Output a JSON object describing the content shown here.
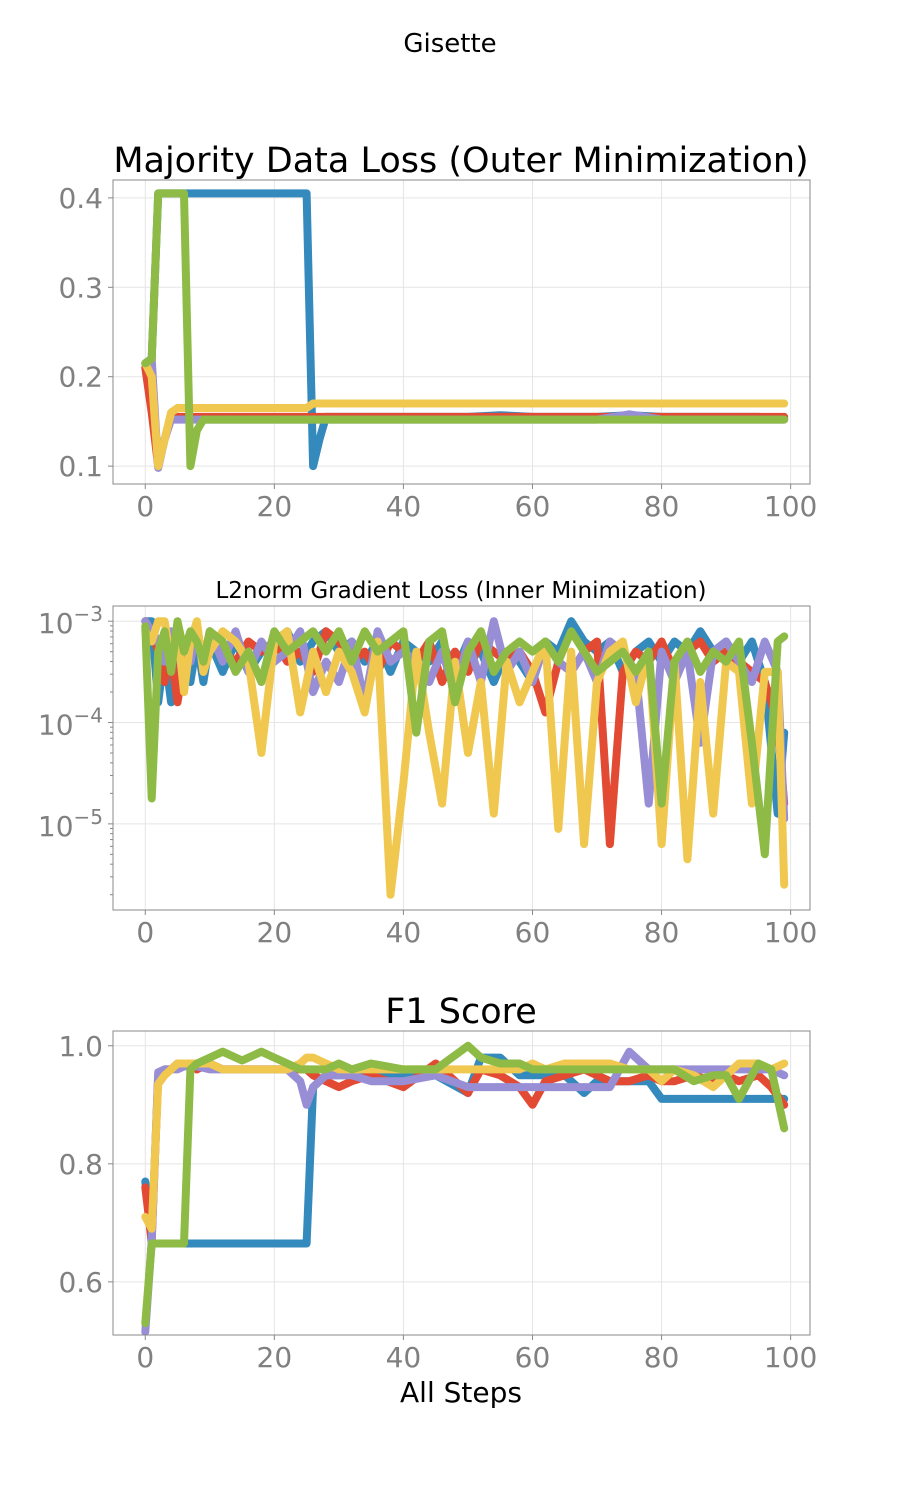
{
  "figure": {
    "suptitle": "Gisette"
  },
  "chart_data": [
    {
      "type": "line",
      "title": "Majority Data Loss (Outer Minimization)",
      "title_size": "large",
      "xlabel": "",
      "ylabel": "",
      "xlim": [
        -5,
        103
      ],
      "ylim": [
        0.08,
        0.42
      ],
      "yscale": "linear",
      "xticks": [
        0,
        20,
        40,
        60,
        80,
        100
      ],
      "yticks": [
        0.1,
        0.2,
        0.3,
        0.4
      ],
      "ytick_labels": [
        "0.1",
        "0.2",
        "0.3",
        "0.4"
      ],
      "grid": true,
      "x": [
        0,
        1,
        2,
        3,
        4,
        5,
        6,
        7,
        8,
        9,
        10,
        12,
        15,
        18,
        20,
        22,
        24,
        25,
        26,
        27,
        28,
        30,
        35,
        40,
        45,
        50,
        55,
        60,
        65,
        70,
        75,
        80,
        85,
        90,
        95,
        99
      ],
      "series": [
        {
          "color": "#348abd",
          "values": [
            0.215,
            0.22,
            0.405,
            0.405,
            0.405,
            0.405,
            0.405,
            0.405,
            0.405,
            0.405,
            0.405,
            0.405,
            0.405,
            0.405,
            0.405,
            0.405,
            0.405,
            0.405,
            0.1,
            0.13,
            0.155,
            0.155,
            0.155,
            0.155,
            0.155,
            0.155,
            0.157,
            0.155,
            0.155,
            0.155,
            0.157,
            0.155,
            0.155,
            0.155,
            0.155,
            0.153
          ]
        },
        {
          "color": "#e24a33",
          "values": [
            0.21,
            0.16,
            0.1,
            0.13,
            0.155,
            0.155,
            0.155,
            0.155,
            0.155,
            0.155,
            0.155,
            0.155,
            0.155,
            0.155,
            0.155,
            0.155,
            0.155,
            0.155,
            0.155,
            0.155,
            0.155,
            0.155,
            0.155,
            0.155,
            0.155,
            0.155,
            0.155,
            0.155,
            0.155,
            0.155,
            0.155,
            0.155,
            0.155,
            0.155,
            0.155,
            0.155
          ]
        },
        {
          "color": "#988ed5",
          "values": [
            0.215,
            0.22,
            0.098,
            0.13,
            0.152,
            0.152,
            0.152,
            0.152,
            0.152,
            0.152,
            0.152,
            0.152,
            0.152,
            0.152,
            0.152,
            0.152,
            0.152,
            0.152,
            0.152,
            0.152,
            0.152,
            0.152,
            0.152,
            0.152,
            0.152,
            0.152,
            0.152,
            0.152,
            0.152,
            0.152,
            0.158,
            0.152,
            0.152,
            0.152,
            0.152,
            0.152
          ]
        },
        {
          "color": "#f0c850",
          "values": [
            0.215,
            0.2,
            0.1,
            0.13,
            0.16,
            0.165,
            0.165,
            0.165,
            0.165,
            0.165,
            0.165,
            0.165,
            0.165,
            0.165,
            0.165,
            0.165,
            0.165,
            0.165,
            0.17,
            0.17,
            0.17,
            0.17,
            0.17,
            0.17,
            0.17,
            0.17,
            0.17,
            0.17,
            0.17,
            0.17,
            0.17,
            0.17,
            0.17,
            0.17,
            0.17,
            0.17
          ]
        },
        {
          "color": "#8ebb46",
          "values": [
            0.215,
            0.22,
            0.405,
            0.405,
            0.405,
            0.405,
            0.405,
            0.1,
            0.14,
            0.152,
            0.152,
            0.152,
            0.152,
            0.152,
            0.152,
            0.152,
            0.152,
            0.152,
            0.152,
            0.152,
            0.152,
            0.152,
            0.152,
            0.152,
            0.152,
            0.152,
            0.152,
            0.152,
            0.152,
            0.152,
            0.152,
            0.152,
            0.152,
            0.152,
            0.152,
            0.152
          ]
        }
      ]
    },
    {
      "type": "line",
      "title": "L2norm Gradient Loss (Inner Minimization)",
      "title_size": "small",
      "xlabel": "",
      "ylabel": "",
      "xlim": [
        -5,
        103
      ],
      "ylim_log10": [
        -5.85,
        -2.85
      ],
      "yscale": "log",
      "xticks": [
        0,
        20,
        40,
        60,
        80,
        100
      ],
      "yticks_log10": [
        -3,
        -4,
        -5
      ],
      "ytick_labels": [
        {
          "base": "10",
          "exp": "−3"
        },
        {
          "base": "10",
          "exp": "−4"
        },
        {
          "base": "10",
          "exp": "−5"
        }
      ],
      "grid": true,
      "x": [
        0,
        1,
        2,
        3,
        4,
        5,
        6,
        7,
        8,
        9,
        10,
        12,
        14,
        16,
        18,
        20,
        22,
        24,
        26,
        28,
        30,
        32,
        34,
        36,
        38,
        40,
        42,
        44,
        46,
        48,
        50,
        52,
        54,
        56,
        58,
        60,
        62,
        64,
        66,
        68,
        70,
        72,
        74,
        76,
        78,
        80,
        82,
        84,
        86,
        88,
        90,
        92,
        94,
        96,
        98,
        99
      ],
      "series": [
        {
          "color": "#348abd",
          "log10_values": [
            -3.0,
            -3.0,
            -3.8,
            -3.3,
            -3.8,
            -3.4,
            -3.2,
            -3.6,
            -3.2,
            -3.6,
            -3.2,
            -3.5,
            -3.2,
            -3.5,
            -3.3,
            -3.2,
            -3.1,
            -3.4,
            -3.2,
            -3.1,
            -3.3,
            -3.2,
            -3.4,
            -3.2,
            -3.5,
            -3.2,
            -3.3,
            -3.4,
            -3.2,
            -3.5,
            -3.2,
            -3.3,
            -3.6,
            -3.3,
            -3.4,
            -3.6,
            -3.2,
            -3.3,
            -3.0,
            -3.2,
            -3.3,
            -3.2,
            -3.5,
            -3.3,
            -3.2,
            -3.4,
            -3.2,
            -3.3,
            -3.1,
            -3.3,
            -3.2,
            -3.4,
            -3.2,
            -3.6,
            -4.9,
            -4.1
          ]
        },
        {
          "color": "#e24a33",
          "log10_values": [
            -3.0,
            -3.1,
            -3.3,
            -3.6,
            -3.3,
            -3.8,
            -3.4,
            -3.3,
            -3.2,
            -3.4,
            -3.1,
            -3.3,
            -3.4,
            -3.2,
            -3.3,
            -3.2,
            -3.4,
            -3.3,
            -3.5,
            -3.1,
            -3.2,
            -3.4,
            -3.3,
            -3.5,
            -3.2,
            -3.3,
            -3.4,
            -3.2,
            -3.6,
            -3.3,
            -3.5,
            -3.2,
            -3.3,
            -3.4,
            -3.3,
            -3.5,
            -3.9,
            -3.4,
            -3.5,
            -3.3,
            -3.2,
            -5.2,
            -3.5,
            -3.3,
            -3.4,
            -3.2,
            -3.5,
            -3.3,
            -3.2,
            -3.4,
            -3.3,
            -3.4,
            -3.5,
            -3.6,
            -4.0,
            -4.8
          ]
        },
        {
          "color": "#988ed5",
          "log10_values": [
            -3.0,
            -3.1,
            -3.2,
            -3.4,
            -3.1,
            -3.3,
            -3.2,
            -3.4,
            -3.1,
            -3.5,
            -3.1,
            -3.4,
            -3.1,
            -3.5,
            -3.2,
            -3.4,
            -3.3,
            -3.1,
            -3.7,
            -3.4,
            -3.6,
            -3.2,
            -3.8,
            -3.1,
            -3.4,
            -3.3,
            -3.4,
            -3.6,
            -3.3,
            -3.7,
            -3.2,
            -3.6,
            -3.0,
            -3.5,
            -3.3,
            -3.6,
            -3.2,
            -3.4,
            -3.5,
            -3.3,
            -3.6,
            -3.2,
            -3.3,
            -3.5,
            -4.8,
            -3.3,
            -3.6,
            -3.3,
            -4.2,
            -3.3,
            -3.2,
            -3.4,
            -3.6,
            -3.2,
            -3.5,
            -4.95
          ]
        },
        {
          "color": "#f0c850",
          "log10_values": [
            -3.1,
            -3.2,
            -3.0,
            -3.0,
            -3.4,
            -3.1,
            -3.7,
            -3.2,
            -3.0,
            -3.5,
            -3.3,
            -3.1,
            -3.2,
            -3.4,
            -4.3,
            -3.2,
            -3.1,
            -3.9,
            -3.3,
            -3.7,
            -3.3,
            -3.5,
            -3.9,
            -3.2,
            -5.7,
            -4.6,
            -3.3,
            -4.1,
            -4.8,
            -3.4,
            -4.3,
            -3.6,
            -4.9,
            -3.4,
            -3.8,
            -3.5,
            -3.2,
            -5.05,
            -3.3,
            -5.2,
            -3.6,
            -3.3,
            -3.2,
            -3.8,
            -3.3,
            -5.2,
            -3.4,
            -5.35,
            -3.6,
            -4.9,
            -3.4,
            -3.5,
            -4.8,
            -3.5,
            -3.5,
            -5.6
          ]
        },
        {
          "color": "#8ebb46",
          "log10_values": [
            -3.05,
            -4.75,
            -3.3,
            -3.1,
            -3.5,
            -3.0,
            -3.3,
            -3.1,
            -3.2,
            -3.4,
            -3.1,
            -3.2,
            -3.5,
            -3.3,
            -3.6,
            -3.1,
            -3.3,
            -3.2,
            -3.1,
            -3.3,
            -3.1,
            -3.4,
            -3.1,
            -3.3,
            -3.2,
            -3.1,
            -4.1,
            -3.2,
            -3.1,
            -3.8,
            -3.3,
            -3.1,
            -3.5,
            -3.3,
            -3.2,
            -3.3,
            -3.2,
            -3.4,
            -3.1,
            -3.3,
            -3.5,
            -3.4,
            -3.3,
            -3.5,
            -3.3,
            -4.8,
            -3.4,
            -3.2,
            -3.5,
            -3.3,
            -3.4,
            -3.2,
            -4.2,
            -5.3,
            -3.2,
            -3.15
          ]
        }
      ]
    },
    {
      "type": "line",
      "title": "F1 Score",
      "title_size": "large",
      "xlabel": "All Steps",
      "ylabel": "",
      "xlim": [
        -5,
        103
      ],
      "ylim": [
        0.51,
        1.025
      ],
      "yscale": "linear",
      "xticks": [
        0,
        20,
        40,
        60,
        80,
        100
      ],
      "yticks": [
        0.6,
        0.8,
        1.0
      ],
      "ytick_labels": [
        "0.6",
        "0.8",
        "1.0"
      ],
      "grid": true,
      "x": [
        0,
        1,
        2,
        3,
        4,
        5,
        6,
        7,
        8,
        10,
        12,
        15,
        18,
        20,
        22,
        24,
        25,
        26,
        28,
        30,
        32,
        35,
        40,
        45,
        50,
        52,
        55,
        58,
        60,
        62,
        65,
        68,
        70,
        72,
        75,
        78,
        80,
        82,
        85,
        88,
        90,
        92,
        95,
        97,
        99
      ],
      "series": [
        {
          "color": "#348abd",
          "values": [
            0.77,
            0.665,
            0.665,
            0.665,
            0.665,
            0.665,
            0.665,
            0.665,
            0.665,
            0.665,
            0.665,
            0.665,
            0.665,
            0.665,
            0.665,
            0.665,
            0.665,
            0.93,
            0.95,
            0.95,
            0.95,
            0.95,
            0.95,
            0.95,
            0.92,
            0.98,
            0.98,
            0.95,
            0.95,
            0.95,
            0.95,
            0.92,
            0.94,
            0.94,
            0.94,
            0.94,
            0.91,
            0.91,
            0.91,
            0.91,
            0.91,
            0.91,
            0.91,
            0.91,
            0.91
          ]
        },
        {
          "color": "#e24a33",
          "values": [
            0.76,
            0.67,
            0.95,
            0.96,
            0.96,
            0.97,
            0.97,
            0.97,
            0.96,
            0.97,
            0.96,
            0.96,
            0.96,
            0.96,
            0.96,
            0.96,
            0.96,
            0.95,
            0.94,
            0.93,
            0.94,
            0.95,
            0.93,
            0.97,
            0.92,
            0.96,
            0.95,
            0.93,
            0.9,
            0.94,
            0.95,
            0.96,
            0.95,
            0.94,
            0.94,
            0.95,
            0.94,
            0.94,
            0.95,
            0.94,
            0.95,
            0.94,
            0.95,
            0.93,
            0.9
          ]
        },
        {
          "color": "#988ed5",
          "values": [
            0.515,
            0.67,
            0.955,
            0.96,
            0.96,
            0.96,
            0.965,
            0.965,
            0.965,
            0.96,
            0.96,
            0.96,
            0.96,
            0.96,
            0.96,
            0.94,
            0.9,
            0.93,
            0.95,
            0.95,
            0.95,
            0.94,
            0.94,
            0.95,
            0.93,
            0.93,
            0.93,
            0.93,
            0.93,
            0.93,
            0.93,
            0.93,
            0.93,
            0.93,
            0.99,
            0.96,
            0.96,
            0.96,
            0.96,
            0.96,
            0.96,
            0.96,
            0.96,
            0.96,
            0.95
          ]
        },
        {
          "color": "#f0c850",
          "values": [
            0.71,
            0.69,
            0.935,
            0.95,
            0.96,
            0.97,
            0.97,
            0.97,
            0.97,
            0.97,
            0.96,
            0.96,
            0.96,
            0.96,
            0.96,
            0.97,
            0.98,
            0.98,
            0.97,
            0.96,
            0.96,
            0.96,
            0.96,
            0.96,
            0.96,
            0.96,
            0.96,
            0.96,
            0.97,
            0.96,
            0.97,
            0.97,
            0.97,
            0.97,
            0.96,
            0.96,
            0.94,
            0.96,
            0.95,
            0.93,
            0.95,
            0.97,
            0.97,
            0.96,
            0.97
          ]
        },
        {
          "color": "#8ebb46",
          "values": [
            0.53,
            0.665,
            0.665,
            0.665,
            0.665,
            0.665,
            0.665,
            0.96,
            0.97,
            0.98,
            0.99,
            0.975,
            0.99,
            0.98,
            0.97,
            0.96,
            0.96,
            0.96,
            0.96,
            0.97,
            0.96,
            0.97,
            0.96,
            0.96,
            1.0,
            0.98,
            0.97,
            0.97,
            0.96,
            0.96,
            0.96,
            0.96,
            0.96,
            0.96,
            0.96,
            0.96,
            0.96,
            0.96,
            0.94,
            0.95,
            0.95,
            0.91,
            0.97,
            0.96,
            0.86
          ]
        }
      ]
    }
  ]
}
